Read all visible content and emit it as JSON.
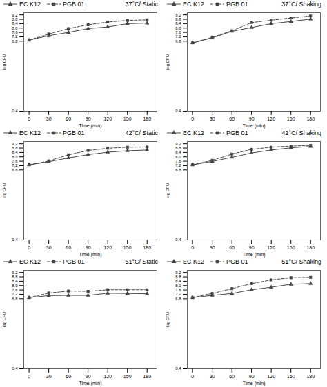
{
  "chart_data": [
    {
      "type": "line",
      "title": "37°C/ Static",
      "xlabel": "Time (min)",
      "ylabel": "log CFU",
      "x": [
        0,
        30,
        60,
        90,
        120,
        150,
        180
      ],
      "xlim": [
        -8,
        195
      ],
      "ylim": [
        0.4,
        9.4
      ],
      "xticks": [
        0,
        30,
        60,
        90,
        120,
        150,
        180
      ],
      "yticks": [
        0.4,
        6.8,
        7.2,
        7.6,
        {
          "value": 8.0,
          "label": "8.0"
        },
        8.4,
        8.8,
        9.2
      ],
      "legend": "upper left",
      "series": [
        {
          "name": "EC K12",
          "color": "#444444",
          "marker": "triangle",
          "line_style": "solid",
          "values": [
            6.9,
            7.3,
            7.6,
            7.95,
            8.1,
            8.4,
            8.45
          ],
          "yerr": [
            0.08,
            0.2,
            0.12,
            0.1,
            0.12,
            0.08,
            0.07
          ]
        },
        {
          "name": "PGB 01",
          "color": "#444444",
          "marker": "square",
          "line_style": "dashed",
          "values": [
            6.9,
            7.45,
            7.95,
            8.3,
            8.55,
            8.7,
            8.75
          ],
          "yerr": [
            0.06,
            0.12,
            0.08,
            0.07,
            0.06,
            0.07,
            0.06
          ]
        }
      ]
    },
    {
      "type": "line",
      "title": "37°C/ Shaking",
      "xlabel": "Time (min)",
      "ylabel": "log CFU",
      "x": [
        0,
        30,
        60,
        90,
        120,
        150,
        180
      ],
      "xlim": [
        -8,
        195
      ],
      "ylim": [
        0.4,
        9.4
      ],
      "xticks": [
        0,
        30,
        60,
        90,
        120,
        150,
        180
      ],
      "yticks": [
        0.4,
        6.8,
        7.2,
        7.6,
        {
          "value": 8.0,
          "label": "8.0"
        },
        8.4,
        8.8,
        9.2
      ],
      "legend": "upper left",
      "series": [
        {
          "name": "EC K12",
          "color": "#444444",
          "marker": "triangle",
          "line_style": "solid",
          "values": [
            6.65,
            7.1,
            7.7,
            8.05,
            8.4,
            8.6,
            8.82
          ],
          "yerr": [
            0.07,
            0.12,
            0.1,
            0.08,
            0.07,
            0.07,
            0.06
          ]
        },
        {
          "name": "PGB 01",
          "color": "#444444",
          "marker": "square",
          "line_style": "dashed",
          "values": [
            6.65,
            7.15,
            7.75,
            8.5,
            8.72,
            8.92,
            9.1
          ],
          "yerr": [
            0.07,
            0.14,
            0.1,
            0.07,
            0.07,
            0.06,
            0.05
          ]
        }
      ]
    },
    {
      "type": "line",
      "title": "42°C/ Static",
      "xlabel": "Time (min)",
      "ylabel": "log CFU",
      "x": [
        0,
        30,
        60,
        90,
        120,
        150,
        180
      ],
      "xlim": [
        -8,
        195
      ],
      "ylim": [
        0.4,
        9.4
      ],
      "xticks": [
        0,
        30,
        60,
        90,
        120,
        150,
        180
      ],
      "yticks": [
        0.4,
        6.8,
        7.2,
        7.6,
        {
          "value": 8.0,
          "label": "8.0"
        },
        8.4,
        8.8,
        9.2
      ],
      "legend": "upper left",
      "series": [
        {
          "name": "EC K12",
          "color": "#444444",
          "marker": "triangle",
          "line_style": "solid",
          "values": [
            7.28,
            7.55,
            7.9,
            8.2,
            8.42,
            8.55,
            8.62
          ],
          "yerr": [
            0.06,
            0.12,
            0.09,
            0.08,
            0.07,
            0.07,
            0.06
          ]
        },
        {
          "name": "PGB 01",
          "color": "#444444",
          "marker": "square",
          "line_style": "dashed",
          "values": [
            7.28,
            7.62,
            8.18,
            8.58,
            8.78,
            8.88,
            8.9
          ],
          "yerr": [
            0.06,
            0.1,
            0.07,
            0.06,
            0.05,
            0.06,
            0.05
          ]
        }
      ]
    },
    {
      "type": "line",
      "title": "42°C/ Shaking",
      "xlabel": "Time (min)",
      "ylabel": "log CFU",
      "x": [
        0,
        30,
        60,
        90,
        120,
        150,
        180
      ],
      "xlim": [
        -8,
        195
      ],
      "ylim": [
        0.4,
        9.4
      ],
      "xticks": [
        0,
        30,
        60,
        90,
        120,
        150,
        180
      ],
      "yticks": [
        0.4,
        6.8,
        7.2,
        7.6,
        {
          "value": 8.0,
          "label": "8.0"
        },
        8.4,
        8.8,
        9.2
      ],
      "legend": "upper left",
      "series": [
        {
          "name": "EC K12",
          "color": "#444444",
          "marker": "triangle",
          "line_style": "solid",
          "values": [
            7.28,
            7.58,
            7.95,
            8.35,
            8.62,
            8.82,
            8.95
          ],
          "yerr": [
            0.06,
            0.12,
            0.09,
            0.08,
            0.07,
            0.07,
            0.06
          ]
        },
        {
          "name": "PGB 01",
          "color": "#444444",
          "marker": "square",
          "line_style": "dashed",
          "values": [
            7.28,
            7.68,
            8.25,
            8.68,
            8.88,
            8.98,
            9.05
          ],
          "yerr": [
            0.06,
            0.1,
            0.07,
            0.06,
            0.05,
            0.06,
            0.05
          ]
        }
      ]
    },
    {
      "type": "line",
      "title": "51°C/ Static",
      "xlabel": "Time (min)",
      "ylabel": "log CFU",
      "x": [
        0,
        30,
        60,
        90,
        120,
        150,
        180
      ],
      "xlim": [
        -8,
        195
      ],
      "ylim": [
        0.4,
        9.4
      ],
      "xticks": [
        0,
        30,
        60,
        90,
        120,
        150,
        180
      ],
      "yticks": [
        0.4,
        6.8,
        7.2,
        7.6,
        {
          "value": 8.0,
          "label": "8.0"
        },
        8.4,
        8.8,
        9.2
      ],
      "legend": "upper left",
      "series": [
        {
          "name": "EC K12",
          "color": "#444444",
          "marker": "triangle",
          "line_style": "solid",
          "values": [
            6.9,
            7.08,
            7.1,
            7.1,
            7.3,
            7.28,
            7.25
          ],
          "yerr": [
            0.08,
            0.18,
            0.14,
            0.12,
            0.1,
            0.09,
            0.08
          ]
        },
        {
          "name": "PGB 01",
          "color": "#444444",
          "marker": "square",
          "line_style": "dashed",
          "values": [
            6.9,
            7.32,
            7.5,
            7.48,
            7.62,
            7.62,
            7.62
          ],
          "yerr": [
            0.08,
            0.14,
            0.1,
            0.08,
            0.07,
            0.07,
            0.06
          ]
        }
      ]
    },
    {
      "type": "line",
      "title": "51°C/ Shaking",
      "xlabel": "Time (min)",
      "ylabel": "log CFU",
      "x": [
        0,
        30,
        60,
        90,
        120,
        150,
        180
      ],
      "xlim": [
        -8,
        195
      ],
      "ylim": [
        0.4,
        9.4
      ],
      "xticks": [
        0,
        30,
        60,
        90,
        120,
        150,
        180
      ],
      "yticks": [
        0.4,
        6.8,
        7.2,
        7.6,
        {
          "value": 8.0,
          "label": "8.0"
        },
        8.4,
        8.8,
        9.2
      ],
      "legend": "upper left",
      "series": [
        {
          "name": "EC K12",
          "color": "#444444",
          "marker": "triangle",
          "line_style": "solid",
          "values": [
            6.9,
            7.1,
            7.28,
            7.62,
            7.85,
            8.12,
            8.18
          ],
          "yerr": [
            0.08,
            0.12,
            0.1,
            0.08,
            0.07,
            0.07,
            0.06
          ]
        },
        {
          "name": "PGB 01",
          "color": "#444444",
          "marker": "square",
          "line_style": "dashed",
          "values": [
            6.9,
            7.28,
            7.72,
            8.18,
            8.52,
            8.72,
            8.75
          ],
          "yerr": [
            0.08,
            0.12,
            0.08,
            0.06,
            0.05,
            0.05,
            0.05
          ]
        }
      ]
    }
  ]
}
